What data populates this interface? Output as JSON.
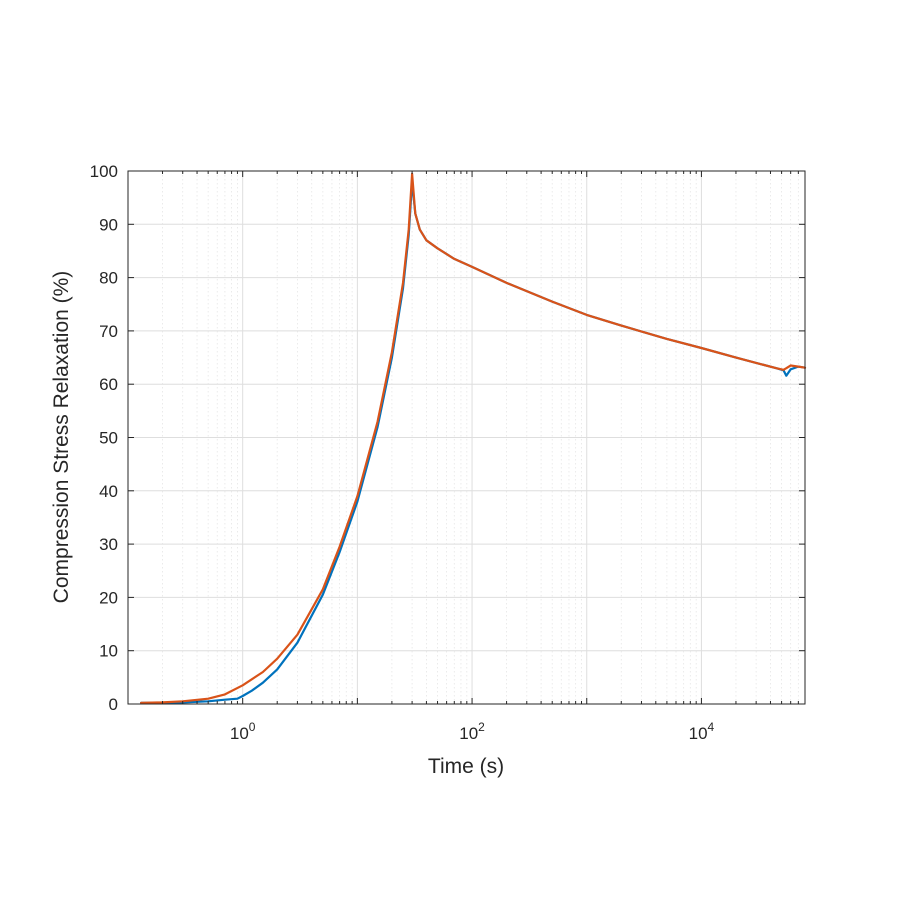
{
  "chart_data": {
    "type": "line",
    "xlabel": "Time (s)",
    "ylabel": "Compression Stress Relaxation (%)",
    "x_scale": "log",
    "xlim": [
      0.1,
      80000
    ],
    "ylim": [
      0,
      100
    ],
    "grid": true,
    "minor_grid": true,
    "x_ticks": [
      {
        "value": 1,
        "base": "10",
        "exp": "0"
      },
      {
        "value": 100,
        "base": "10",
        "exp": "2"
      },
      {
        "value": 10000,
        "base": "10",
        "exp": "4"
      }
    ],
    "y_ticks": [
      "0",
      "10",
      "20",
      "30",
      "40",
      "50",
      "60",
      "70",
      "80",
      "90",
      "100"
    ],
    "series": [
      {
        "color": "#0072bd",
        "x": [
          0.13,
          0.2,
          0.3,
          0.5,
          0.7,
          0.9,
          1.0,
          1.2,
          1.5,
          2,
          3,
          5,
          7,
          10,
          15,
          20,
          25,
          28,
          30,
          32,
          35,
          40,
          50,
          70,
          100,
          200,
          500,
          1000,
          2000,
          5000,
          10000,
          20000,
          45000,
          52000,
          55000,
          60000,
          70000,
          80000
        ],
        "y": [
          0.2,
          0.2,
          0.3,
          0.5,
          0.8,
          1.0,
          1.5,
          2.5,
          4.0,
          6.5,
          11.5,
          20.5,
          28.5,
          38.0,
          52.0,
          65.0,
          78.0,
          88.0,
          98.0,
          92.0,
          89.0,
          87.0,
          85.5,
          83.5,
          82.0,
          79.0,
          75.5,
          73.0,
          71.0,
          68.5,
          66.8,
          65.0,
          63.0,
          62.6,
          61.6,
          62.8,
          63.3,
          63.1
        ]
      },
      {
        "color": "#d95319",
        "x": [
          0.13,
          0.2,
          0.3,
          0.5,
          0.7,
          1.0,
          1.5,
          2,
          3,
          5,
          7,
          10,
          15,
          20,
          25,
          28,
          30,
          32,
          35,
          40,
          50,
          70,
          100,
          200,
          500,
          1000,
          2000,
          5000,
          10000,
          20000,
          45000,
          52000,
          55000,
          60000,
          70000,
          80000
        ],
        "y": [
          0.2,
          0.3,
          0.5,
          1.0,
          1.8,
          3.5,
          6.0,
          8.5,
          13.0,
          21.5,
          29.5,
          39.0,
          53.0,
          66.0,
          79.0,
          89.0,
          99.5,
          92.0,
          89.0,
          87.0,
          85.5,
          83.5,
          82.0,
          79.0,
          75.5,
          73.0,
          71.0,
          68.5,
          66.8,
          65.0,
          63.0,
          62.7,
          63.0,
          63.5,
          63.3,
          63.1
        ]
      }
    ]
  }
}
